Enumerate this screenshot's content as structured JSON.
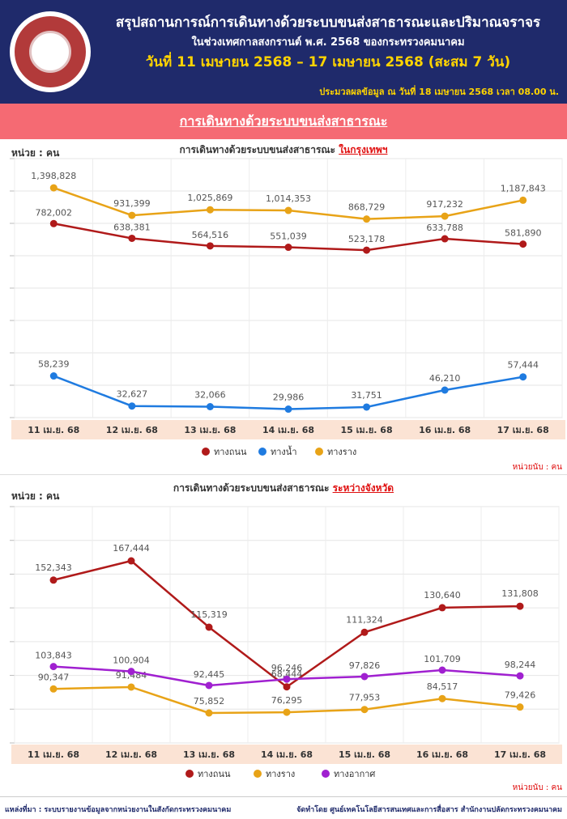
{
  "header": {
    "title": "สรุปสถานการณ์การเดินทางด้วยระบบขนส่งสาธารณะและปริมาณจราจร",
    "subtitle": "ในช่วงเทศกาลสงกรานต์ พ.ศ. 2568 ของกระทรวงคมนาคม",
    "date_range": "วันที่ 11 เมษายน 2568 – 17 เมษายน 2568 (สะสม 7 วัน)",
    "processed": "ประมวลผลข้อมูล ณ วันที่  18 เมษายน 2568 เวลา 08.00 น."
  },
  "banner": {
    "label": "การเดินทางด้วยระบบขนส่งสาธารณะ"
  },
  "footer": {
    "source": "แหล่งที่มา : ระบบรายงานข้อมูลจากหน่วยงานในสังกัดกระทรวงคมนาคม",
    "credit": "จัดทำโดย ศูนย์เทคโนโลยีสารสนเทศและการสื่อสาร สำนักงานปลัดกระทรวงคมนาคม"
  },
  "colors": {
    "road": "#b01a1a",
    "water": "#1f7be0",
    "rail": "#e8a317",
    "air": "#a020d0",
    "header_bg": "#1f2a6b",
    "banner_bg": "#f56a73",
    "axis_band": "#fbe3d4"
  },
  "chart_data": [
    {
      "type": "line",
      "title_prefix": "การเดินทางด้วยระบบขนส่งสาธารณะ ",
      "title_highlight": "ในกรุงเทพฯ",
      "unit_label": "หน่วย : คน",
      "unit_note": "หน่วยนับ : คน",
      "categories": [
        "11 เม.ย. 68",
        "12 เม.ย. 68",
        "13 เม.ย. 68",
        "14 เม.ย. 68",
        "15 เม.ย. 68",
        "16 เม.ย. 68",
        "17 เม.ย. 68"
      ],
      "series": [
        {
          "name": "ทางถนน",
          "color": "#b01a1a",
          "values": [
            782002,
            638381,
            564516,
            551039,
            523178,
            633788,
            581890
          ],
          "labels": [
            "782,002",
            "638,381",
            "564,516",
            "551,039",
            "523,178",
            "633,788",
            "581,890"
          ]
        },
        {
          "name": "ทางน้ำ",
          "color": "#1f7be0",
          "values": [
            58239,
            32627,
            32066,
            29986,
            31751,
            46210,
            57444
          ],
          "labels": [
            "58,239",
            "32,627",
            "32,066",
            "29,986",
            "31,751",
            "46,210",
            "57,444"
          ]
        },
        {
          "name": "ทางราง",
          "color": "#e8a317",
          "values": [
            1398828,
            931399,
            1025869,
            1014353,
            868729,
            917232,
            1187843
          ],
          "labels": [
            "1,398,828",
            "931,399",
            "1,025,869",
            "1,014,353",
            "868,729",
            "917,232",
            "1,187,843"
          ]
        }
      ],
      "legend_order": [
        "ทางถนน",
        "ทางน้ำ",
        "ทางราง"
      ],
      "grid": true,
      "legend_position": "bottom"
    },
    {
      "type": "line",
      "title_prefix": "การเดินทางด้วยระบบขนส่งสาธารณะ ",
      "title_highlight": "ระหว่างจังหวัด",
      "unit_label": "หน่วย : คน",
      "unit_note": "หน่วยนับ : คน",
      "categories": [
        "11 เม.ย. 68",
        "12 เม.ย. 68",
        "13 เม.ย. 68",
        "14 เม.ย. 68",
        "15 เม.ย. 68",
        "16 เม.ย. 68",
        "17 เม.ย. 68"
      ],
      "series": [
        {
          "name": "ทางถนน",
          "color": "#b01a1a",
          "values": [
            152343,
            167444,
            115319,
            68444,
            111324,
            130640,
            131808
          ],
          "labels": [
            "152,343",
            "167,444",
            "115,319",
            "68,444",
            "111,324",
            "130,640",
            "131,808"
          ]
        },
        {
          "name": "ทางราง",
          "color": "#e8a317",
          "values": [
            90347,
            91484,
            75852,
            76295,
            77953,
            84517,
            79426
          ],
          "labels": [
            "90,347",
            "91,484",
            "75,852",
            "76,295",
            "77,953",
            "84,517",
            "79,426"
          ]
        },
        {
          "name": "ทางอากาศ",
          "color": "#a020d0",
          "values": [
            103843,
            100904,
            92445,
            96246,
            97826,
            101709,
            98244
          ],
          "labels": [
            "103,843",
            "100,904",
            "92,445",
            "96,246",
            "97,826",
            "101,709",
            "98,244"
          ]
        }
      ],
      "legend_order": [
        "ทางถนน",
        "ทางราง",
        "ทางอากาศ"
      ],
      "grid": true,
      "legend_position": "bottom"
    }
  ]
}
